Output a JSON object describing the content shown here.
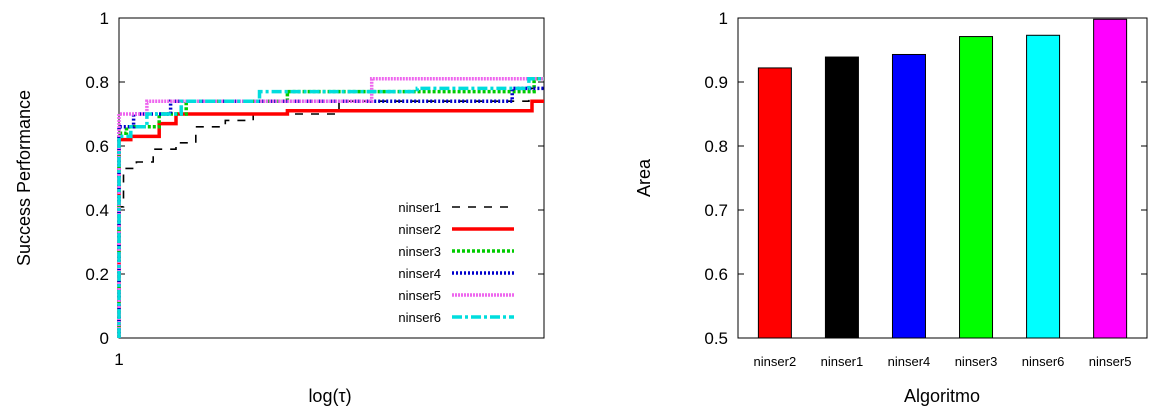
{
  "chart_data": [
    {
      "type": "line",
      "xlabel": "log(τ)",
      "ylabel": "Success Performance",
      "x_scale": "log",
      "xlim": [
        1,
        16
      ],
      "ylim": [
        0,
        1
      ],
      "y_ticks": [
        "0",
        "0.2",
        "0.4",
        "0.6",
        "0.8",
        "1"
      ],
      "x_ticks": [
        {
          "value": 1,
          "label": "1"
        }
      ],
      "legend_position": "bottom-right",
      "series": [
        {
          "name": "ninser1",
          "color": "#000000",
          "dash": "8,8",
          "width": 1.6,
          "points": [
            [
              1,
              0
            ],
            [
              1,
              0.41
            ],
            [
              1.03,
              0.41
            ],
            [
              1.03,
              0.53
            ],
            [
              1.12,
              0.53
            ],
            [
              1.12,
              0.55
            ],
            [
              1.25,
              0.55
            ],
            [
              1.25,
              0.59
            ],
            [
              1.45,
              0.59
            ],
            [
              1.45,
              0.61
            ],
            [
              1.65,
              0.61
            ],
            [
              1.65,
              0.66
            ],
            [
              2,
              0.66
            ],
            [
              2,
              0.68
            ],
            [
              2.4,
              0.68
            ],
            [
              2.4,
              0.7
            ],
            [
              4.2,
              0.7
            ],
            [
              4.2,
              0.74
            ],
            [
              14.5,
              0.74
            ],
            [
              14.5,
              0.78
            ],
            [
              16,
              0.78
            ]
          ]
        },
        {
          "name": "ninser2",
          "color": "#ff0000",
          "dash": "",
          "width": 3.5,
          "points": [
            [
              1,
              0
            ],
            [
              1,
              0.62
            ],
            [
              1.08,
              0.62
            ],
            [
              1.08,
              0.63
            ],
            [
              1.3,
              0.63
            ],
            [
              1.3,
              0.67
            ],
            [
              1.45,
              0.67
            ],
            [
              1.45,
              0.7
            ],
            [
              3,
              0.7
            ],
            [
              3,
              0.71
            ],
            [
              14.8,
              0.71
            ],
            [
              14.8,
              0.74
            ],
            [
              16,
              0.74
            ]
          ]
        },
        {
          "name": "ninser3",
          "color": "#00cc00",
          "dash": "3,2",
          "width": 3.5,
          "points": [
            [
              1,
              0
            ],
            [
              1,
              0.64
            ],
            [
              1.05,
              0.64
            ],
            [
              1.05,
              0.66
            ],
            [
              1.3,
              0.66
            ],
            [
              1.3,
              0.7
            ],
            [
              1.55,
              0.7
            ],
            [
              1.55,
              0.74
            ],
            [
              3,
              0.74
            ],
            [
              3,
              0.77
            ],
            [
              15,
              0.77
            ],
            [
              15,
              0.81
            ],
            [
              16,
              0.81
            ]
          ]
        },
        {
          "name": "ninser4",
          "color": "#0000cc",
          "dash": "2,2",
          "width": 3.5,
          "points": [
            [
              1,
              0
            ],
            [
              1,
              0.66
            ],
            [
              1.1,
              0.66
            ],
            [
              1.1,
              0.7
            ],
            [
              1.4,
              0.7
            ],
            [
              1.4,
              0.74
            ],
            [
              13,
              0.74
            ],
            [
              13,
              0.78
            ],
            [
              16,
              0.78
            ]
          ]
        },
        {
          "name": "ninser5",
          "color": "#ee66ee",
          "dash": "2,1",
          "width": 3.5,
          "points": [
            [
              1,
              0
            ],
            [
              1,
              0.7
            ],
            [
              1.2,
              0.7
            ],
            [
              1.2,
              0.74
            ],
            [
              5.2,
              0.74
            ],
            [
              5.2,
              0.81
            ],
            [
              16,
              0.81
            ]
          ]
        },
        {
          "name": "ninser6",
          "color": "#00dddd",
          "dash": "10,3,3,3",
          "width": 3.5,
          "points": [
            [
              1,
              0
            ],
            [
              1,
              0.63
            ],
            [
              1.08,
              0.63
            ],
            [
              1.08,
              0.66
            ],
            [
              1.2,
              0.66
            ],
            [
              1.2,
              0.7
            ],
            [
              1.5,
              0.7
            ],
            [
              1.5,
              0.74
            ],
            [
              2.5,
              0.74
            ],
            [
              2.5,
              0.77
            ],
            [
              7,
              0.77
            ],
            [
              7,
              0.78
            ],
            [
              14.5,
              0.78
            ],
            [
              14.5,
              0.81
            ],
            [
              16,
              0.81
            ]
          ]
        }
      ]
    },
    {
      "type": "bar",
      "xlabel": "Algoritmo",
      "ylabel": "Area",
      "ylim": [
        0.5,
        1
      ],
      "y_ticks": [
        "0.5",
        "0.6",
        "0.7",
        "0.8",
        "0.9",
        "1"
      ],
      "categories": [
        "ninser2",
        "ninser1",
        "ninser4",
        "ninser3",
        "ninser6",
        "ninser5"
      ],
      "values": [
        0.922,
        0.939,
        0.943,
        0.971,
        0.973,
        0.998
      ],
      "colors": [
        "#ff0000",
        "#000000",
        "#0000ff",
        "#00ff00",
        "#00ffff",
        "#ff00ff"
      ]
    }
  ]
}
